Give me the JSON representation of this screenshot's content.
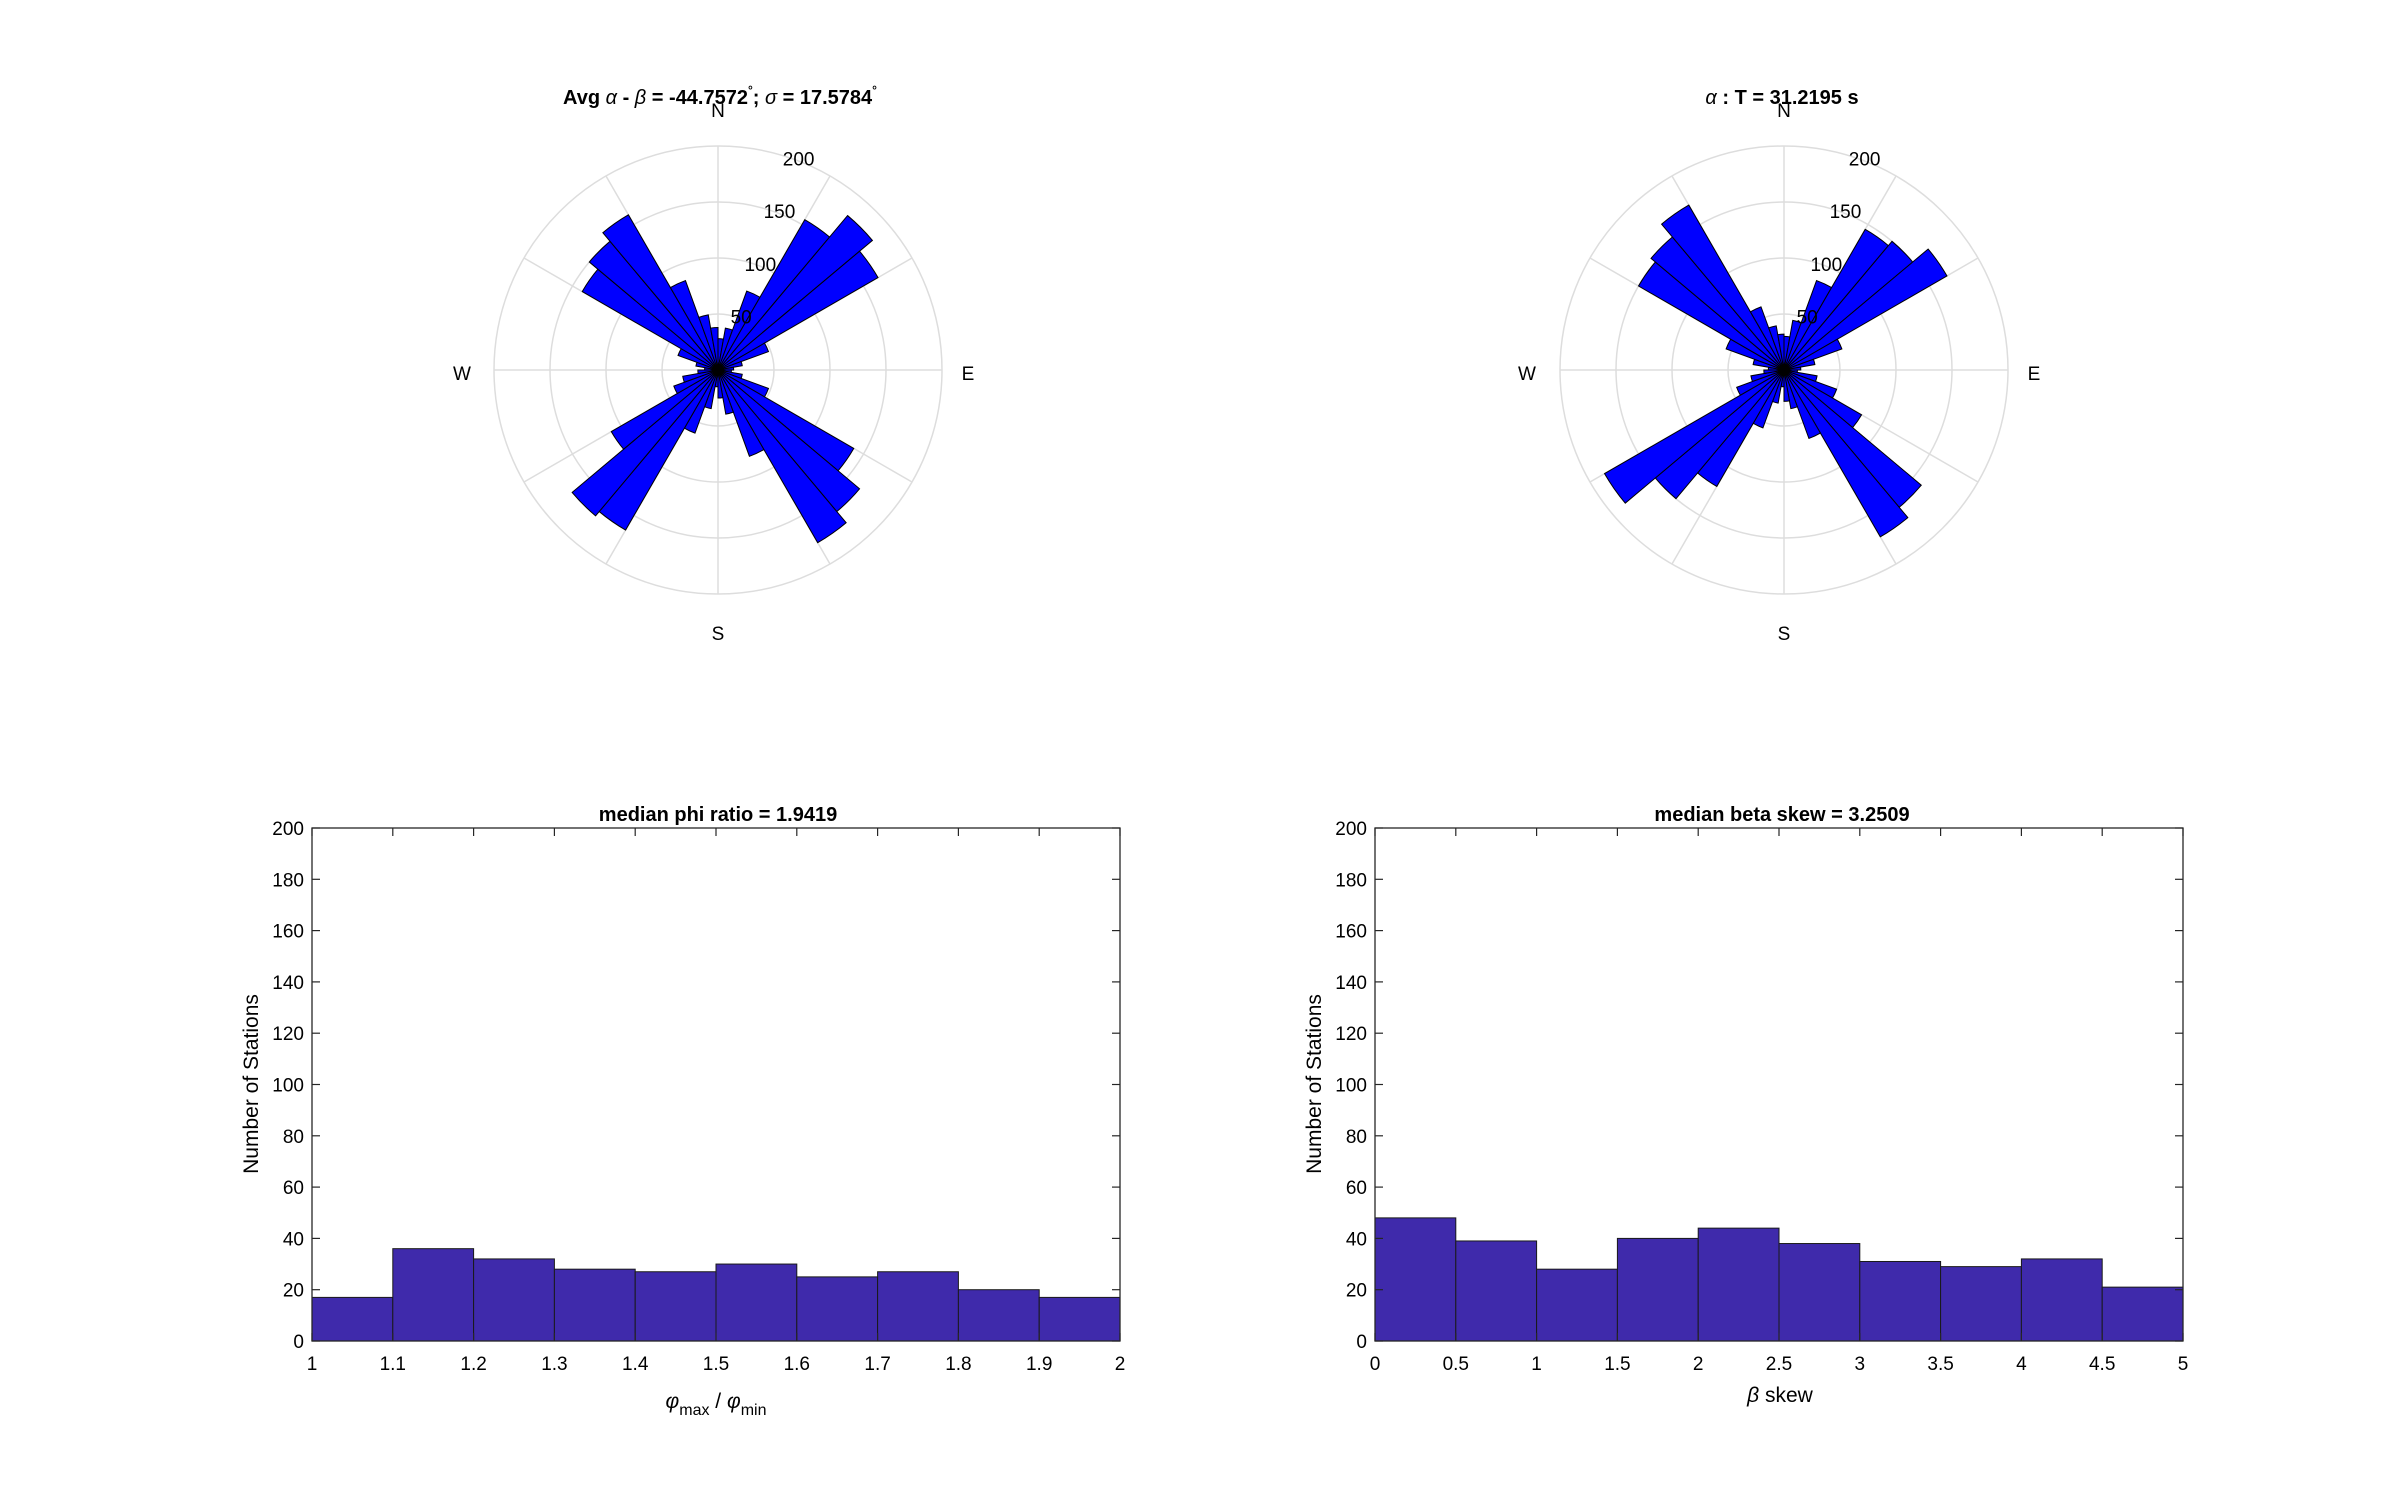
{
  "colors": {
    "rose_fill": "#0000ff",
    "rose_edge": "#000000",
    "hist_fill": "#3f2aab",
    "hist_edge": "#1a1a1a",
    "polar_grid": "#dddddd",
    "axes": "#262626"
  },
  "chart_data": [
    {
      "type": "rose",
      "title_parts": [
        "Avg ",
        "α",
        " - ",
        "β",
        " = -44.7572",
        "°",
        "; ",
        "σ",
        " = 17.5784",
        "°"
      ],
      "compass": {
        "n": "N",
        "e": "E",
        "s": "S",
        "w": "W"
      },
      "r_max": 200,
      "r_ticks": [
        50,
        100,
        150,
        200
      ],
      "angular_grid_deg": 30,
      "bin_width_deg": 10,
      "bins": [
        {
          "az": 5,
          "r": 28
        },
        {
          "az": 15,
          "r": 38
        },
        {
          "az": 25,
          "r": 75
        },
        {
          "az": 35,
          "r": 155
        },
        {
          "az": 45,
          "r": 180
        },
        {
          "az": 55,
          "r": 165
        },
        {
          "az": 65,
          "r": 48
        },
        {
          "az": 75,
          "r": 22
        },
        {
          "az": 85,
          "r": 14
        },
        {
          "az": 95,
          "r": 12
        },
        {
          "az": 105,
          "r": 22
        },
        {
          "az": 115,
          "r": 48
        },
        {
          "az": 125,
          "r": 140
        },
        {
          "az": 135,
          "r": 165
        },
        {
          "az": 145,
          "r": 178
        },
        {
          "az": 155,
          "r": 82
        },
        {
          "az": 165,
          "r": 40
        },
        {
          "az": 175,
          "r": 25
        },
        {
          "az": 185,
          "r": 15
        },
        {
          "az": 195,
          "r": 35
        },
        {
          "az": 205,
          "r": 60
        },
        {
          "az": 215,
          "r": 165
        },
        {
          "az": 225,
          "r": 170
        },
        {
          "az": 235,
          "r": 110
        },
        {
          "az": 245,
          "r": 42
        },
        {
          "az": 255,
          "r": 32
        },
        {
          "az": 265,
          "r": 18
        },
        {
          "az": 275,
          "r": 12
        },
        {
          "az": 285,
          "r": 20
        },
        {
          "az": 295,
          "r": 38
        },
        {
          "az": 305,
          "r": 140
        },
        {
          "az": 315,
          "r": 150
        },
        {
          "az": 325,
          "r": 160
        },
        {
          "az": 335,
          "r": 85
        },
        {
          "az": 345,
          "r": 50
        },
        {
          "az": 355,
          "r": 38
        }
      ]
    },
    {
      "type": "rose",
      "title_parts": [
        "α",
        " : T = 31.2195 s"
      ],
      "compass": {
        "n": "N",
        "e": "E",
        "s": "S",
        "w": "W"
      },
      "r_max": 200,
      "r_ticks": [
        50,
        100,
        150,
        200
      ],
      "angular_grid_deg": 30,
      "bin_width_deg": 10,
      "bins": [
        {
          "az": 5,
          "r": 30
        },
        {
          "az": 15,
          "r": 45
        },
        {
          "az": 25,
          "r": 85
        },
        {
          "az": 35,
          "r": 145
        },
        {
          "az": 45,
          "r": 150
        },
        {
          "az": 55,
          "r": 168
        },
        {
          "az": 65,
          "r": 55
        },
        {
          "az": 75,
          "r": 28
        },
        {
          "az": 85,
          "r": 15
        },
        {
          "az": 95,
          "r": 12
        },
        {
          "az": 105,
          "r": 30
        },
        {
          "az": 115,
          "r": 50
        },
        {
          "az": 125,
          "r": 80
        },
        {
          "az": 135,
          "r": 160
        },
        {
          "az": 145,
          "r": 172
        },
        {
          "az": 155,
          "r": 65
        },
        {
          "az": 165,
          "r": 35
        },
        {
          "az": 175,
          "r": 28
        },
        {
          "az": 185,
          "r": 15
        },
        {
          "az": 195,
          "r": 30
        },
        {
          "az": 205,
          "r": 55
        },
        {
          "az": 215,
          "r": 120
        },
        {
          "az": 225,
          "r": 150
        },
        {
          "az": 235,
          "r": 185
        },
        {
          "az": 245,
          "r": 45
        },
        {
          "az": 255,
          "r": 30
        },
        {
          "az": 265,
          "r": 18
        },
        {
          "az": 275,
          "r": 14
        },
        {
          "az": 285,
          "r": 28
        },
        {
          "az": 295,
          "r": 55
        },
        {
          "az": 305,
          "r": 150
        },
        {
          "az": 315,
          "r": 155
        },
        {
          "az": 325,
          "r": 170
        },
        {
          "az": 335,
          "r": 60
        },
        {
          "az": 345,
          "r": 40
        },
        {
          "az": 355,
          "r": 32
        }
      ]
    },
    {
      "type": "bar",
      "title": "median phi ratio = 1.9419",
      "ylabel": "Number of Stations",
      "xlabel_parts": {
        "a": "φ",
        "a_sub": "max",
        "mid": " / ",
        "b": "φ",
        "b_sub": "min"
      },
      "xlim": [
        1,
        2
      ],
      "ylim": [
        0,
        200
      ],
      "xticks": [
        "1",
        "1.1",
        "1.2",
        "1.3",
        "1.4",
        "1.5",
        "1.6",
        "1.7",
        "1.8",
        "1.9",
        "2"
      ],
      "yticks": [
        "0",
        "20",
        "40",
        "60",
        "80",
        "100",
        "120",
        "140",
        "160",
        "180",
        "200"
      ],
      "bin_edges": [
        1,
        1.1,
        1.2,
        1.3,
        1.4,
        1.5,
        1.6,
        1.7,
        1.8,
        1.9,
        2
      ],
      "values": [
        17,
        36,
        32,
        28,
        27,
        30,
        25,
        27,
        20,
        17
      ]
    },
    {
      "type": "bar",
      "title": "median beta skew = 3.2509",
      "ylabel": "Number of Stations",
      "xlabel_parts": {
        "a": "β",
        "rest": " skew"
      },
      "xlim": [
        0,
        5
      ],
      "ylim": [
        0,
        200
      ],
      "xticks": [
        "0",
        "0.5",
        "1",
        "1.5",
        "2",
        "2.5",
        "3",
        "3.5",
        "4",
        "4.5",
        "5"
      ],
      "yticks": [
        "0",
        "20",
        "40",
        "60",
        "80",
        "100",
        "120",
        "140",
        "160",
        "180",
        "200"
      ],
      "bin_edges": [
        0,
        0.5,
        1,
        1.5,
        2,
        2.5,
        3,
        3.5,
        4,
        4.5,
        5
      ],
      "values": [
        48,
        39,
        28,
        40,
        44,
        38,
        31,
        29,
        32,
        21
      ]
    }
  ]
}
